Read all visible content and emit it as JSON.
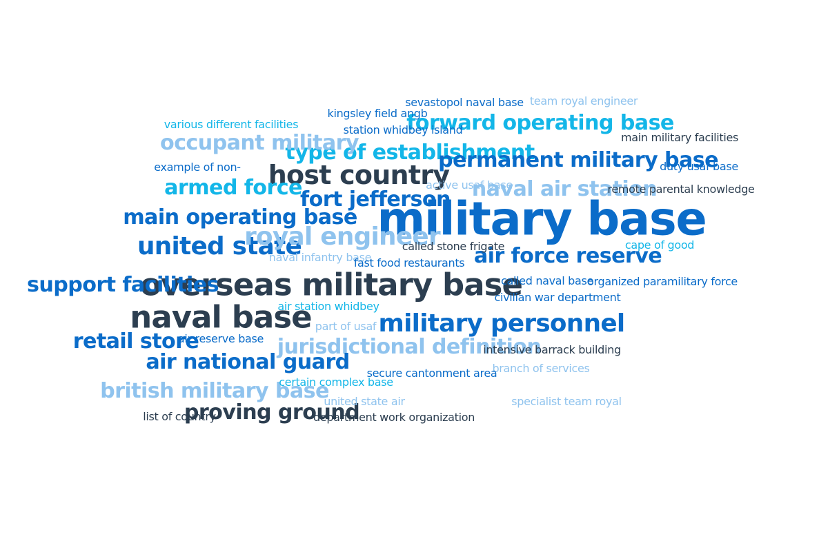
{
  "palette": {
    "navy": "#2c3e50",
    "blue": "#0b6cc9",
    "cyan": "#13b6e8",
    "light": "#8fc3ee"
  },
  "words": [
    {
      "text": "military base",
      "weight": 1.0,
      "color": "blue"
    },
    {
      "text": "overseas military base",
      "weight": 0.62,
      "color": "navy"
    },
    {
      "text": "naval base",
      "weight": 0.62,
      "color": "navy"
    },
    {
      "text": "host country",
      "weight": 0.5,
      "color": "navy"
    },
    {
      "text": "military personnel",
      "weight": 0.46,
      "color": "blue"
    },
    {
      "text": "united state",
      "weight": 0.46,
      "color": "blue"
    },
    {
      "text": "royal engineer",
      "weight": 0.46,
      "color": "light"
    },
    {
      "text": "forward operating base",
      "weight": 0.36,
      "color": "cyan"
    },
    {
      "text": "type of establishment",
      "weight": 0.36,
      "color": "cyan"
    },
    {
      "text": "permanent military base",
      "weight": 0.36,
      "color": "blue"
    },
    {
      "text": "occupant military",
      "weight": 0.36,
      "color": "light"
    },
    {
      "text": "naval air station",
      "weight": 0.36,
      "color": "light"
    },
    {
      "text": "armed force",
      "weight": 0.36,
      "color": "cyan"
    },
    {
      "text": "fort jefferson",
      "weight": 0.36,
      "color": "blue"
    },
    {
      "text": "main operating base",
      "weight": 0.36,
      "color": "blue"
    },
    {
      "text": "air force reserve",
      "weight": 0.36,
      "color": "blue"
    },
    {
      "text": "support facilities",
      "weight": 0.36,
      "color": "blue"
    },
    {
      "text": "retail store",
      "weight": 0.36,
      "color": "blue"
    },
    {
      "text": "jurisdictional definition",
      "weight": 0.36,
      "color": "light"
    },
    {
      "text": "air national guard",
      "weight": 0.36,
      "color": "blue"
    },
    {
      "text": "british military base",
      "weight": 0.36,
      "color": "light"
    },
    {
      "text": "proving ground",
      "weight": 0.36,
      "color": "navy"
    },
    {
      "text": "sevastopol naval base",
      "weight": 0.1,
      "color": "blue"
    },
    {
      "text": "team royal engineer",
      "weight": 0.1,
      "color": "light"
    },
    {
      "text": "kingsley field angb",
      "weight": 0.1,
      "color": "blue"
    },
    {
      "text": "various different facilities",
      "weight": 0.1,
      "color": "cyan"
    },
    {
      "text": "station whidbey island",
      "weight": 0.1,
      "color": "blue"
    },
    {
      "text": "main military facilities",
      "weight": 0.1,
      "color": "navy"
    },
    {
      "text": "example of non-",
      "weight": 0.1,
      "color": "blue"
    },
    {
      "text": "duty usaf base",
      "weight": 0.1,
      "color": "blue"
    },
    {
      "text": "active usaf base",
      "weight": 0.1,
      "color": "light"
    },
    {
      "text": "remote parental knowledge",
      "weight": 0.1,
      "color": "navy"
    },
    {
      "text": "called stone frigate",
      "weight": 0.1,
      "color": "navy"
    },
    {
      "text": "cape of good",
      "weight": 0.1,
      "color": "cyan"
    },
    {
      "text": "naval infantry base",
      "weight": 0.1,
      "color": "light"
    },
    {
      "text": "fast food restaurants",
      "weight": 0.1,
      "color": "blue"
    },
    {
      "text": "called naval base",
      "weight": 0.1,
      "color": "blue"
    },
    {
      "text": "organized paramilitary force",
      "weight": 0.1,
      "color": "blue"
    },
    {
      "text": "civilian war department",
      "weight": 0.1,
      "color": "blue"
    },
    {
      "text": "air station whidbey",
      "weight": 0.1,
      "color": "cyan"
    },
    {
      "text": "part of usaf",
      "weight": 0.1,
      "color": "light"
    },
    {
      "text": "air reserve base",
      "weight": 0.1,
      "color": "blue"
    },
    {
      "text": "intensive barrack building",
      "weight": 0.1,
      "color": "navy"
    },
    {
      "text": "branch of services",
      "weight": 0.1,
      "color": "light"
    },
    {
      "text": "secure cantonment area",
      "weight": 0.1,
      "color": "blue"
    },
    {
      "text": "certain complex base",
      "weight": 0.1,
      "color": "cyan"
    },
    {
      "text": "united state air",
      "weight": 0.1,
      "color": "light"
    },
    {
      "text": "specialist team royal",
      "weight": 0.1,
      "color": "light"
    },
    {
      "text": "list of country",
      "weight": 0.1,
      "color": "navy"
    },
    {
      "text": "department work organization",
      "weight": 0.1,
      "color": "navy"
    }
  ]
}
